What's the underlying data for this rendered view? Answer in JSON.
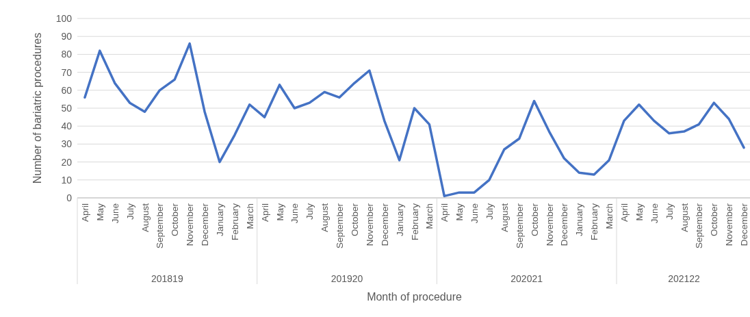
{
  "chart_data": {
    "type": "line",
    "xlabel": "Month of procedure",
    "ylabel": "Number of bariatric procedures",
    "categories": [
      "April",
      "May",
      "June",
      "July",
      "August",
      "September",
      "October",
      "November",
      "December",
      "January",
      "February",
      "March",
      "April",
      "May",
      "June",
      "July",
      "August",
      "September",
      "October",
      "November",
      "December",
      "January",
      "February",
      "March",
      "April",
      "May",
      "June",
      "July",
      "August",
      "September",
      "October",
      "November",
      "December",
      "January",
      "February",
      "March",
      "April",
      "May",
      "June",
      "July",
      "August",
      "September",
      "October",
      "November",
      "December"
    ],
    "series": [
      {
        "color": "#4472c4",
        "values": [
          56,
          82,
          64,
          53,
          48,
          60,
          66,
          86,
          48,
          20,
          35,
          52,
          45,
          63,
          50,
          53,
          59,
          56,
          64,
          71,
          43,
          21,
          50,
          41,
          1,
          3,
          3,
          10,
          27,
          33,
          54,
          37,
          22,
          14,
          13,
          21,
          43,
          52,
          43,
          36,
          37,
          41,
          53,
          44,
          28
        ]
      }
    ],
    "annotations": [
      "201819",
      "201920",
      "202021",
      "202122"
    ],
    "ylim": [
      0,
      100
    ],
    "yticks": [
      0,
      10,
      20,
      30,
      40,
      50,
      60,
      70,
      80,
      90,
      100
    ],
    "grid": "y",
    "marker": "none",
    "line_style": "solid"
  }
}
